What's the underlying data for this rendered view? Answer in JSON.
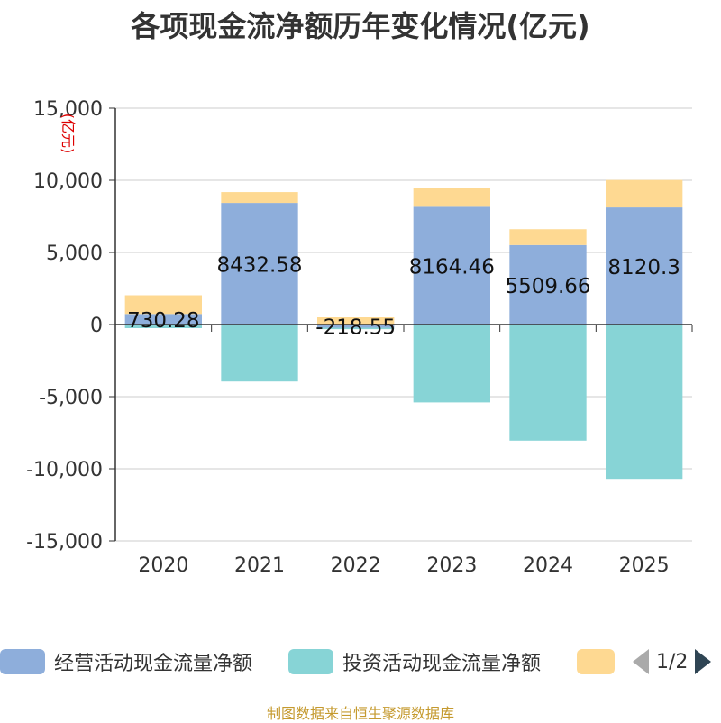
{
  "chart_data": {
    "type": "bar",
    "stacked": true,
    "title": "各项现金流净额历年变化情况(亿元)",
    "ylabel": "(亿元)",
    "categories": [
      "2020",
      "2021",
      "2022",
      "2023",
      "2024",
      "2025"
    ],
    "ylim": [
      -15000,
      15000
    ],
    "yticks": [
      15000,
      10000,
      5000,
      0,
      -5000,
      -10000,
      -15000
    ],
    "ytick_labels": [
      "15,000",
      "10,000",
      "5,000",
      "0",
      "-5,000",
      "-10,000",
      "-15,000"
    ],
    "grid": true,
    "legend_position": "bottom",
    "series": [
      {
        "name": "经营活动现金流量净额",
        "color": "#8eaedb",
        "values": [
          730.28,
          8432.58,
          -218.55,
          8164.46,
          5509.66,
          8120.3
        ],
        "labels": [
          "730.28",
          "8432.58",
          "-218.55",
          "8164.46",
          "5509.66",
          "8120.3"
        ]
      },
      {
        "name": "投资活动现金流量净额",
        "color": "#87d4d6",
        "values": [
          -250,
          -3950,
          -100,
          -5400,
          -8050,
          -10700
        ]
      },
      {
        "name": "",
        "color": "#fed992",
        "values": [
          1300,
          750,
          500,
          1300,
          1100,
          1900
        ]
      }
    ]
  },
  "legend": {
    "item1": "经营活动现金流量净额",
    "item2": "投资活动现金流量净额",
    "page": "1/2"
  },
  "source": "制图数据来自恒生聚源数据库"
}
